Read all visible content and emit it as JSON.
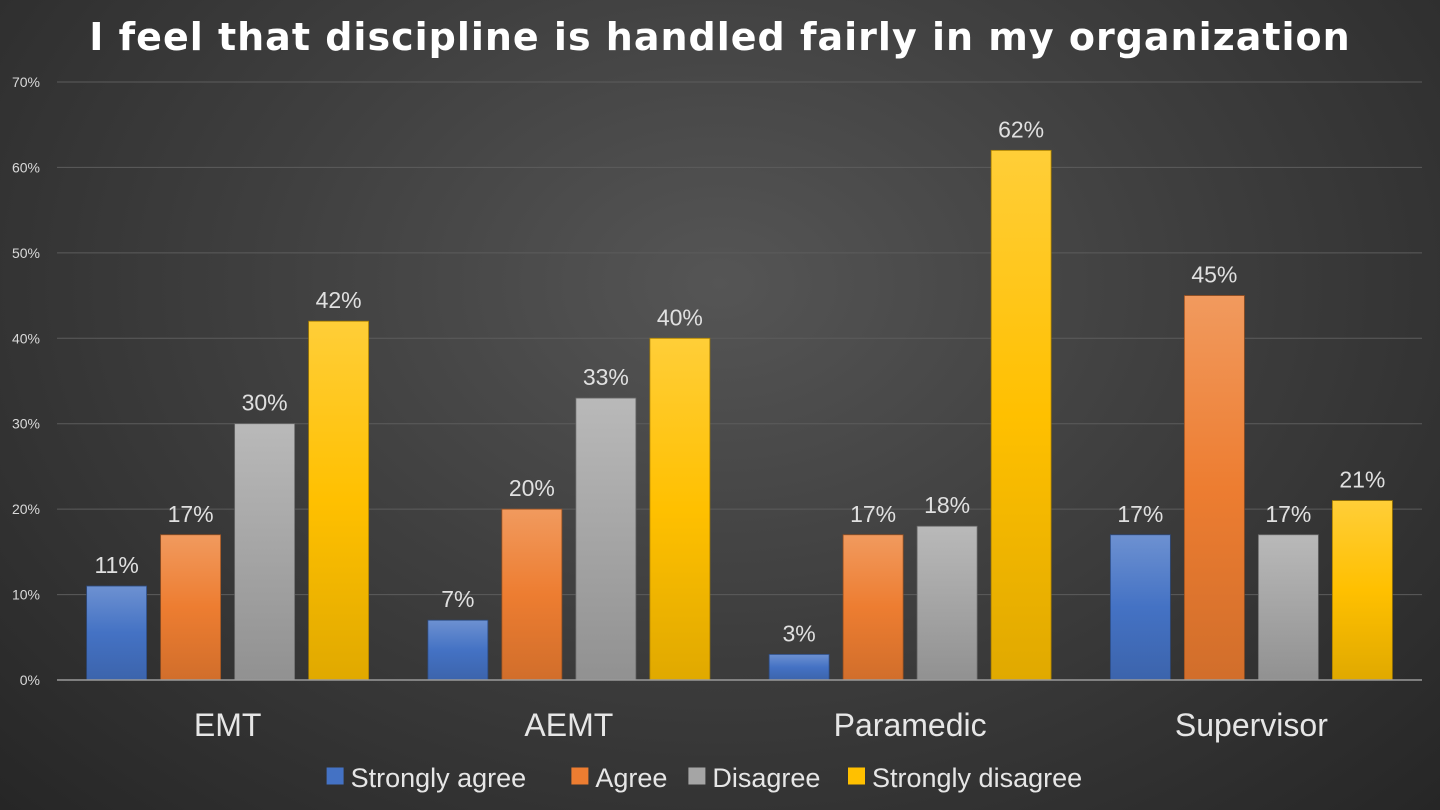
{
  "chart_data": {
    "type": "bar",
    "title": "I feel that discipline is handled fairly in my organization",
    "categories": [
      "EMT",
      "AEMT",
      "Paramedic",
      "Supervisor"
    ],
    "series": [
      {
        "name": "Strongly agree",
        "values": [
          11,
          7,
          3,
          17
        ],
        "color": "#4472c4"
      },
      {
        "name": "Agree",
        "values": [
          17,
          20,
          17,
          45
        ],
        "color": "#ed7d31"
      },
      {
        "name": "Disagree",
        "values": [
          30,
          33,
          18,
          17
        ],
        "color": "#a5a5a5"
      },
      {
        "name": "Strongly disagree",
        "values": [
          42,
          40,
          62,
          21
        ],
        "color": "#ffc000"
      }
    ],
    "value_suffix": "%",
    "ylim": [
      0,
      70
    ],
    "yticks": [
      0,
      10,
      20,
      30,
      40,
      50,
      60,
      70
    ],
    "ytick_labels": [
      "0%",
      "10%",
      "20%",
      "30%",
      "40%",
      "50%",
      "60%",
      "70%"
    ],
    "xlabel": "",
    "ylabel": "",
    "grid": true,
    "legend_position": "bottom"
  }
}
